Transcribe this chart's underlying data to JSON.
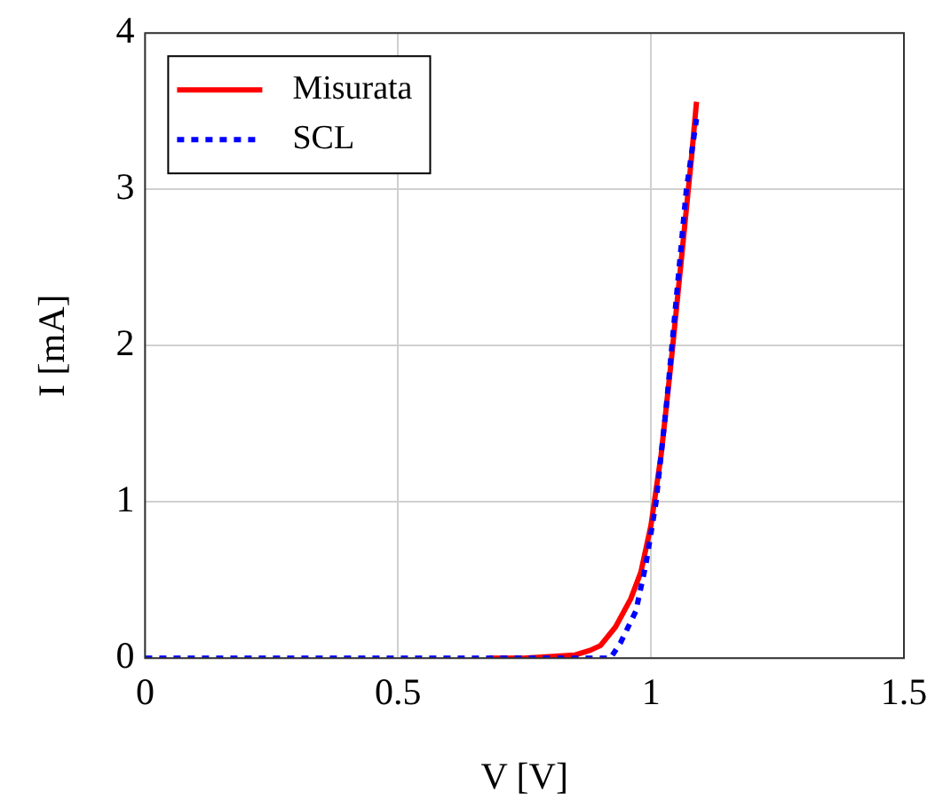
{
  "chart_data": {
    "type": "line",
    "xlabel": "V [V]",
    "ylabel": "I [mA]",
    "xlim": [
      0,
      1.5
    ],
    "xticks": [
      0,
      0.5,
      1,
      1.5
    ],
    "ylim": [
      0,
      4
    ],
    "yticks": [
      0,
      1,
      2,
      3,
      4
    ],
    "grid": true,
    "legend": "top left",
    "marker": "none",
    "series": [
      {
        "name": "Misurata",
        "color": "#ff0000",
        "line_style": "solid",
        "x": [
          0.68,
          0.75,
          0.8,
          0.85,
          0.88,
          0.9,
          0.93,
          0.96,
          0.98,
          1.0,
          1.02,
          1.04,
          1.06,
          1.08,
          1.09
        ],
        "values": [
          0,
          0,
          0.01,
          0.02,
          0.05,
          0.08,
          0.2,
          0.38,
          0.55,
          0.85,
          1.3,
          1.9,
          2.55,
          3.2,
          3.56
        ]
      },
      {
        "name": "SCL",
        "color": "#0000ff",
        "line_style": "dotted",
        "x": [
          0,
          0.5,
          0.9,
          0.92,
          0.94,
          0.97,
          0.99,
          1.01,
          1.03,
          1.05,
          1.07,
          1.09
        ],
        "values": [
          0,
          0,
          0,
          0,
          0.1,
          0.3,
          0.6,
          1.0,
          1.6,
          2.3,
          3.0,
          3.45
        ]
      }
    ]
  }
}
